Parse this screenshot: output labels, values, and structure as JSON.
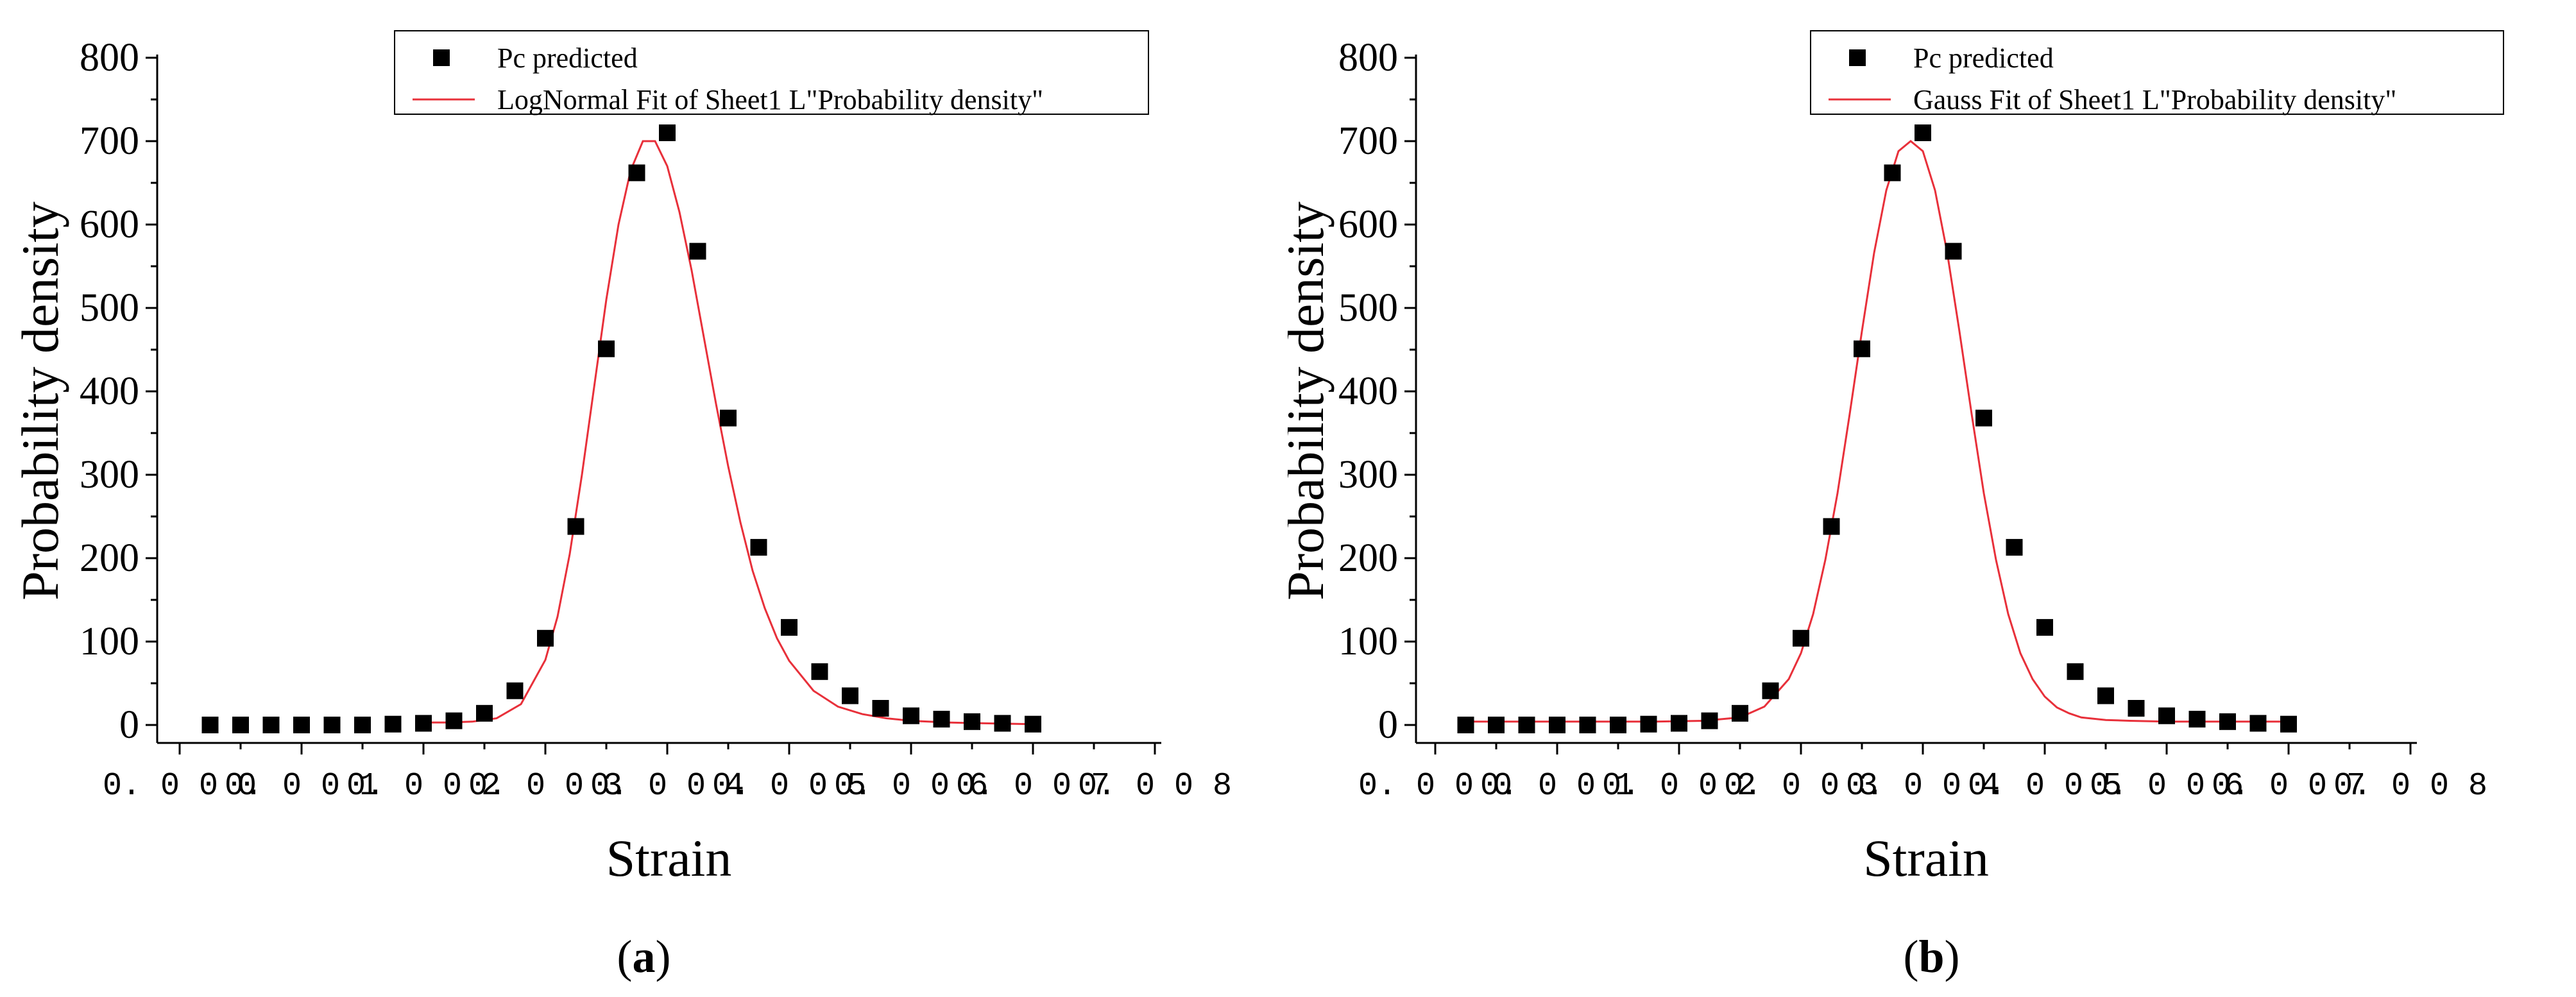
{
  "chart_data": [
    {
      "type": "scatter",
      "panel_label": "a",
      "xlabel": "Strain",
      "ylabel": "Probability density",
      "xlim": [
        0.0,
        0.008
      ],
      "ylim": [
        0,
        800
      ],
      "x_ticks": [
        "0.000",
        "0.001",
        "0.002",
        "0.003",
        "0.004",
        "0.005",
        "0.006",
        "0.007",
        "0.008"
      ],
      "y_ticks": [
        "0",
        "100",
        "200",
        "300",
        "400",
        "500",
        "600",
        "700",
        "800"
      ],
      "legend_position": "top-center",
      "series": [
        {
          "name": "Pc predicted",
          "kind": "scatter",
          "marker": "square",
          "color": "#000000",
          "x": [
            0.00025,
            0.0005,
            0.00075,
            0.001,
            0.00125,
            0.0015,
            0.00175,
            0.002,
            0.00225,
            0.0025,
            0.00275,
            0.003,
            0.00325,
            0.0035,
            0.00375,
            0.004,
            0.00425,
            0.0045,
            0.00475,
            0.005,
            0.00525,
            0.0055,
            0.00575,
            0.006,
            0.00625,
            0.0065,
            0.00675,
            0.007
          ],
          "y": [
            0,
            0,
            0,
            0,
            0,
            0,
            1,
            2,
            5,
            14,
            41,
            104,
            238,
            451,
            662,
            710,
            568,
            368,
            213,
            117,
            64,
            35,
            20,
            11,
            7,
            4,
            2,
            1
          ]
        },
        {
          "name": "LogNormal Fit of Sheet1 L\"Probability density\"",
          "kind": "line",
          "color": "#e8303a",
          "x": [
            0.002,
            0.0022,
            0.0024,
            0.0026,
            0.0028,
            0.003,
            0.0031,
            0.0032,
            0.0033,
            0.0034,
            0.0035,
            0.0036,
            0.0037,
            0.0038,
            0.0039,
            0.004,
            0.0041,
            0.0042,
            0.0043,
            0.0044,
            0.0045,
            0.0046,
            0.0047,
            0.0048,
            0.0049,
            0.005,
            0.0052,
            0.0054,
            0.0056,
            0.0058,
            0.006,
            0.0063,
            0.0066,
            0.007
          ],
          "y": [
            3,
            3,
            4,
            8,
            25,
            78,
            130,
            205,
            300,
            405,
            510,
            600,
            665,
            700,
            700,
            670,
            615,
            545,
            465,
            385,
            310,
            243,
            185,
            140,
            104,
            77,
            41,
            22,
            13,
            8,
            5,
            3,
            2,
            1
          ]
        }
      ]
    },
    {
      "type": "scatter",
      "panel_label": "b",
      "xlabel": "Strain",
      "ylabel": "Probability density",
      "xlim": [
        0.0,
        0.008
      ],
      "ylim": [
        0,
        800
      ],
      "x_ticks": [
        "0.000",
        "0.001",
        "0.002",
        "0.003",
        "0.004",
        "0.005",
        "0.006",
        "0.007",
        "0.008"
      ],
      "y_ticks": [
        "0",
        "100",
        "200",
        "300",
        "400",
        "500",
        "600",
        "700",
        "800"
      ],
      "legend_position": "top-center",
      "series": [
        {
          "name": "Pc predicted",
          "kind": "scatter",
          "marker": "square",
          "color": "#000000",
          "x": [
            0.00025,
            0.0005,
            0.00075,
            0.001,
            0.00125,
            0.0015,
            0.00175,
            0.002,
            0.00225,
            0.0025,
            0.00275,
            0.003,
            0.00325,
            0.0035,
            0.00375,
            0.004,
            0.00425,
            0.0045,
            0.00475,
            0.005,
            0.00525,
            0.0055,
            0.00575,
            0.006,
            0.00625,
            0.0065,
            0.00675,
            0.007
          ],
          "y": [
            0,
            0,
            0,
            0,
            0,
            0,
            1,
            2,
            5,
            14,
            41,
            104,
            238,
            451,
            662,
            710,
            568,
            368,
            213,
            117,
            64,
            35,
            20,
            11,
            7,
            4,
            2,
            1
          ]
        },
        {
          "name": "Gauss Fit of Sheet1 L\"Probability density\"",
          "kind": "line",
          "color": "#e8303a",
          "x": [
            0.0002,
            0.0018,
            0.0022,
            0.0025,
            0.0027,
            0.0029,
            0.003,
            0.0031,
            0.0032,
            0.0033,
            0.0034,
            0.0035,
            0.0036,
            0.0037,
            0.0038,
            0.0039,
            0.004,
            0.0041,
            0.0042,
            0.0043,
            0.0044,
            0.0045,
            0.0046,
            0.0047,
            0.0048,
            0.0049,
            0.005,
            0.0051,
            0.0052,
            0.0053,
            0.0055,
            0.0057,
            0.006,
            0.007
          ],
          "y": [
            4,
            4,
            5,
            9,
            22,
            55,
            86,
            133,
            198,
            278,
            373,
            472,
            566,
            641,
            688,
            700,
            688,
            641,
            566,
            472,
            373,
            278,
            198,
            133,
            86,
            55,
            34,
            21,
            14,
            9,
            6,
            5,
            4,
            4
          ]
        }
      ]
    }
  ]
}
